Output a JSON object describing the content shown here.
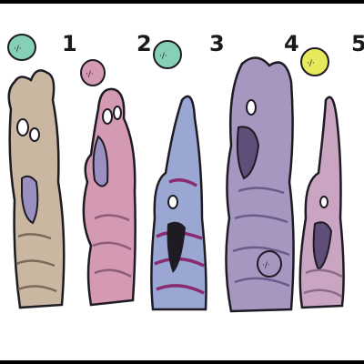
{
  "figures": [
    {
      "number": "1",
      "color": "#c9b7a1",
      "badge_color": "#86d0b7",
      "has_badge": true
    },
    {
      "number": "2",
      "color": "#d49ab3",
      "badge_color": "#d49ab3",
      "has_badge": true
    },
    {
      "number": "3",
      "color": "#9aa7d3",
      "badge_color": "#86d0b7",
      "has_badge": true
    },
    {
      "number": "4",
      "color": "#a597bf",
      "badge_color": "#a597bf",
      "has_badge": true
    },
    {
      "number": "5",
      "color": "#c9a5c2",
      "badge_color": "#e6e95a",
      "has_badge": true
    }
  ],
  "badge_label": "·/·",
  "colors": {
    "outline": "#1e1b24",
    "background": "#ffffff",
    "mouth": "#5e4e78",
    "stripe_dark": "#5c3c7a",
    "stripe_magenta": "#8b2a6f"
  }
}
